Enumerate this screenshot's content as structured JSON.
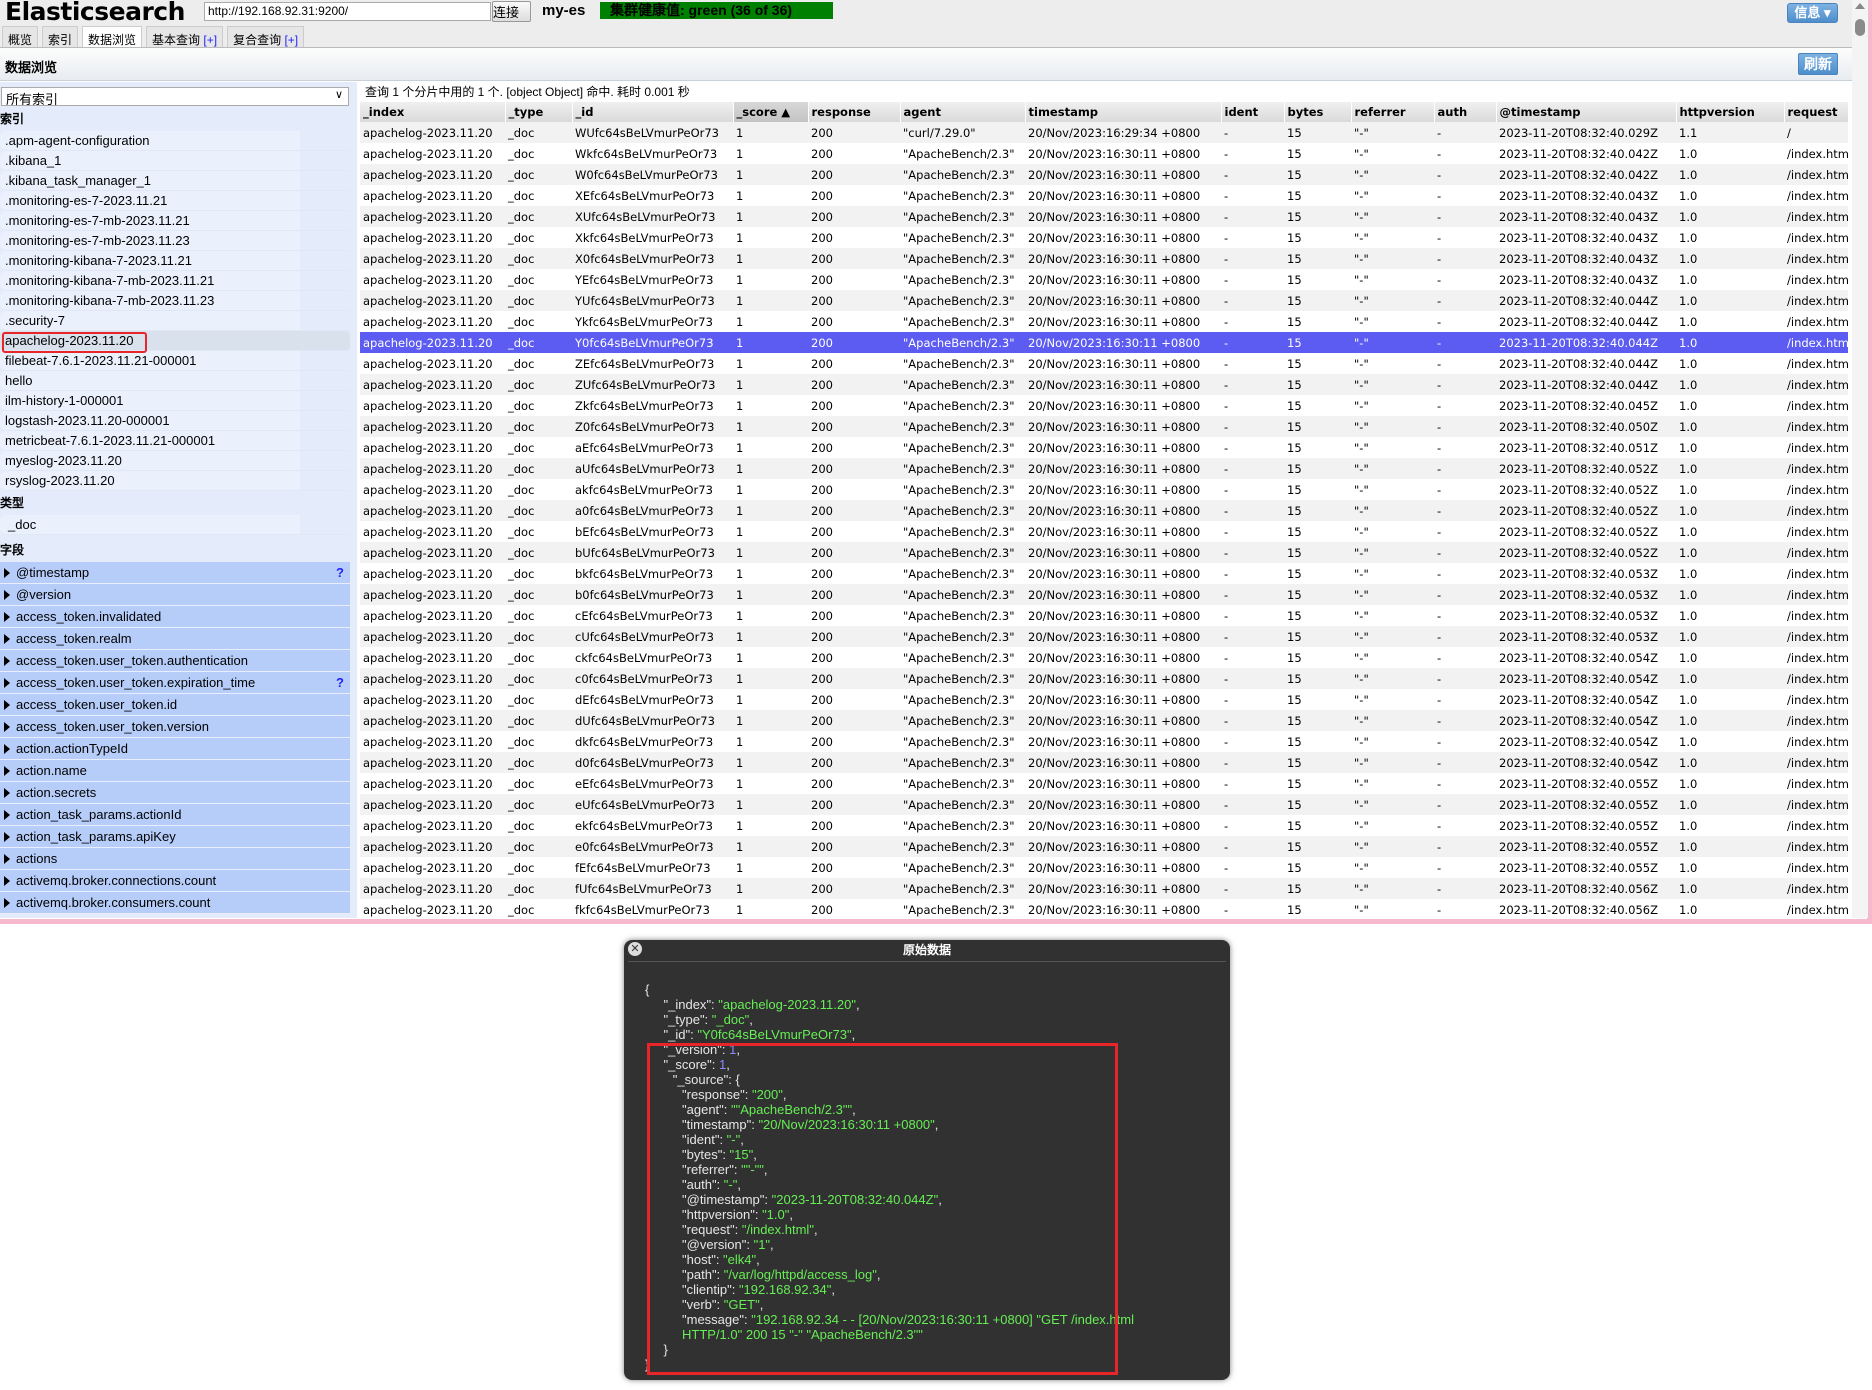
{
  "header": {
    "app_title": "Elasticsearch",
    "url": "http://192.168.92.31:9200/",
    "connect_label": "连接",
    "cluster_name": "my-es",
    "health": "集群健康值: green (36 of 36)",
    "health_color": "#008000",
    "info_label": "信息 ▾"
  },
  "tabs": [
    {
      "label": "概览"
    },
    {
      "label": "索引"
    },
    {
      "label": "数据浏览",
      "active": true
    },
    {
      "label": "基本查询",
      "plus": "[+]"
    },
    {
      "label": "复合查询",
      "plus": "[+]"
    }
  ],
  "subbar": {
    "title": "数据浏览",
    "refresh_label": "刷新"
  },
  "sidebar": {
    "select_value": "所有索引",
    "indices_heading": "索引",
    "indices": [
      ".apm-agent-configuration",
      ".kibana_1",
      ".kibana_task_manager_1",
      ".monitoring-es-7-2023.11.21",
      ".monitoring-es-7-mb-2023.11.21",
      ".monitoring-es-7-mb-2023.11.23",
      ".monitoring-kibana-7-2023.11.21",
      ".monitoring-kibana-7-mb-2023.11.21",
      ".monitoring-kibana-7-mb-2023.11.23",
      ".security-7",
      "apachelog-2023.11.20",
      "filebeat-7.6.1-2023.11.21-000001",
      "hello",
      "ilm-history-1-000001",
      "logstash-2023.11.20-000001",
      "metricbeat-7.6.1-2023.11.21-000001",
      "myeslog-2023.11.20",
      "rsyslog-2023.11.20"
    ],
    "selected_index": "apachelog-2023.11.20",
    "types_heading": "类型",
    "types": [
      "_doc"
    ],
    "fields_heading": "字段",
    "fields": [
      {
        "name": "@timestamp",
        "help": "?"
      },
      {
        "name": "@version"
      },
      {
        "name": "access_token.invalidated"
      },
      {
        "name": "access_token.realm"
      },
      {
        "name": "access_token.user_token.authentication"
      },
      {
        "name": "access_token.user_token.expiration_time",
        "help": "?"
      },
      {
        "name": "access_token.user_token.id"
      },
      {
        "name": "access_token.user_token.version"
      },
      {
        "name": "action.actionTypeId"
      },
      {
        "name": "action.name"
      },
      {
        "name": "action.secrets"
      },
      {
        "name": "action_task_params.actionId"
      },
      {
        "name": "action_task_params.apiKey"
      },
      {
        "name": "actions"
      },
      {
        "name": "activemq.broker.connections.count"
      },
      {
        "name": "activemq.broker.consumers.count"
      }
    ]
  },
  "results": {
    "summary": "查询 1 个分片中用的 1 个. [object Object] 命中. 耗时 0.001 秒",
    "columns": [
      "_index",
      "_type",
      "_id",
      "_score ▲",
      "response",
      "agent",
      "timestamp",
      "ident",
      "bytes",
      "referrer",
      "auth",
      "@timestamp",
      "httpversion",
      "request"
    ],
    "sorted_column": "_score",
    "selected_row_id": "Y0fc64sBeLVmurPeOr73",
    "selected_color": "#5c5cf2",
    "rows": [
      [
        "apachelog-2023.11.20",
        "_doc",
        "WUfc64sBeLVmurPeOr73",
        "1",
        "200",
        "\"curl/7.29.0\"",
        "20/Nov/2023:16:29:34 +0800",
        "-",
        "15",
        "\"-\"",
        "-",
        "2023-11-20T08:32:40.029Z",
        "1.1",
        "/"
      ],
      [
        "apachelog-2023.11.20",
        "_doc",
        "Wkfc64sBeLVmurPeOr73",
        "1",
        "200",
        "\"ApacheBench/2.3\"",
        "20/Nov/2023:16:30:11 +0800",
        "-",
        "15",
        "\"-\"",
        "-",
        "2023-11-20T08:32:40.042Z",
        "1.0",
        "/index.html"
      ],
      [
        "apachelog-2023.11.20",
        "_doc",
        "W0fc64sBeLVmurPeOr73",
        "1",
        "200",
        "\"ApacheBench/2.3\"",
        "20/Nov/2023:16:30:11 +0800",
        "-",
        "15",
        "\"-\"",
        "-",
        "2023-11-20T08:32:40.042Z",
        "1.0",
        "/index.html"
      ],
      [
        "apachelog-2023.11.20",
        "_doc",
        "XEfc64sBeLVmurPeOr73",
        "1",
        "200",
        "\"ApacheBench/2.3\"",
        "20/Nov/2023:16:30:11 +0800",
        "-",
        "15",
        "\"-\"",
        "-",
        "2023-11-20T08:32:40.043Z",
        "1.0",
        "/index.html"
      ],
      [
        "apachelog-2023.11.20",
        "_doc",
        "XUfc64sBeLVmurPeOr73",
        "1",
        "200",
        "\"ApacheBench/2.3\"",
        "20/Nov/2023:16:30:11 +0800",
        "-",
        "15",
        "\"-\"",
        "-",
        "2023-11-20T08:32:40.043Z",
        "1.0",
        "/index.html"
      ],
      [
        "apachelog-2023.11.20",
        "_doc",
        "Xkfc64sBeLVmurPeOr73",
        "1",
        "200",
        "\"ApacheBench/2.3\"",
        "20/Nov/2023:16:30:11 +0800",
        "-",
        "15",
        "\"-\"",
        "-",
        "2023-11-20T08:32:40.043Z",
        "1.0",
        "/index.html"
      ],
      [
        "apachelog-2023.11.20",
        "_doc",
        "X0fc64sBeLVmurPeOr73",
        "1",
        "200",
        "\"ApacheBench/2.3\"",
        "20/Nov/2023:16:30:11 +0800",
        "-",
        "15",
        "\"-\"",
        "-",
        "2023-11-20T08:32:40.043Z",
        "1.0",
        "/index.html"
      ],
      [
        "apachelog-2023.11.20",
        "_doc",
        "YEfc64sBeLVmurPeOr73",
        "1",
        "200",
        "\"ApacheBench/2.3\"",
        "20/Nov/2023:16:30:11 +0800",
        "-",
        "15",
        "\"-\"",
        "-",
        "2023-11-20T08:32:40.043Z",
        "1.0",
        "/index.html"
      ],
      [
        "apachelog-2023.11.20",
        "_doc",
        "YUfc64sBeLVmurPeOr73",
        "1",
        "200",
        "\"ApacheBench/2.3\"",
        "20/Nov/2023:16:30:11 +0800",
        "-",
        "15",
        "\"-\"",
        "-",
        "2023-11-20T08:32:40.044Z",
        "1.0",
        "/index.html"
      ],
      [
        "apachelog-2023.11.20",
        "_doc",
        "Ykfc64sBeLVmurPeOr73",
        "1",
        "200",
        "\"ApacheBench/2.3\"",
        "20/Nov/2023:16:30:11 +0800",
        "-",
        "15",
        "\"-\"",
        "-",
        "2023-11-20T08:32:40.044Z",
        "1.0",
        "/index.html"
      ],
      [
        "apachelog-2023.11.20",
        "_doc",
        "Y0fc64sBeLVmurPeOr73",
        "1",
        "200",
        "\"ApacheBench/2.3\"",
        "20/Nov/2023:16:30:11 +0800",
        "-",
        "15",
        "\"-\"",
        "-",
        "2023-11-20T08:32:40.044Z",
        "1.0",
        "/index.html"
      ],
      [
        "apachelog-2023.11.20",
        "_doc",
        "ZEfc64sBeLVmurPeOr73",
        "1",
        "200",
        "\"ApacheBench/2.3\"",
        "20/Nov/2023:16:30:11 +0800",
        "-",
        "15",
        "\"-\"",
        "-",
        "2023-11-20T08:32:40.044Z",
        "1.0",
        "/index.html"
      ],
      [
        "apachelog-2023.11.20",
        "_doc",
        "ZUfc64sBeLVmurPeOr73",
        "1",
        "200",
        "\"ApacheBench/2.3\"",
        "20/Nov/2023:16:30:11 +0800",
        "-",
        "15",
        "\"-\"",
        "-",
        "2023-11-20T08:32:40.044Z",
        "1.0",
        "/index.html"
      ],
      [
        "apachelog-2023.11.20",
        "_doc",
        "Zkfc64sBeLVmurPeOr73",
        "1",
        "200",
        "\"ApacheBench/2.3\"",
        "20/Nov/2023:16:30:11 +0800",
        "-",
        "15",
        "\"-\"",
        "-",
        "2023-11-20T08:32:40.045Z",
        "1.0",
        "/index.html"
      ],
      [
        "apachelog-2023.11.20",
        "_doc",
        "Z0fc64sBeLVmurPeOr73",
        "1",
        "200",
        "\"ApacheBench/2.3\"",
        "20/Nov/2023:16:30:11 +0800",
        "-",
        "15",
        "\"-\"",
        "-",
        "2023-11-20T08:32:40.050Z",
        "1.0",
        "/index.html"
      ],
      [
        "apachelog-2023.11.20",
        "_doc",
        "aEfc64sBeLVmurPeOr73",
        "1",
        "200",
        "\"ApacheBench/2.3\"",
        "20/Nov/2023:16:30:11 +0800",
        "-",
        "15",
        "\"-\"",
        "-",
        "2023-11-20T08:32:40.051Z",
        "1.0",
        "/index.html"
      ],
      [
        "apachelog-2023.11.20",
        "_doc",
        "aUfc64sBeLVmurPeOr73",
        "1",
        "200",
        "\"ApacheBench/2.3\"",
        "20/Nov/2023:16:30:11 +0800",
        "-",
        "15",
        "\"-\"",
        "-",
        "2023-11-20T08:32:40.052Z",
        "1.0",
        "/index.html"
      ],
      [
        "apachelog-2023.11.20",
        "_doc",
        "akfc64sBeLVmurPeOr73",
        "1",
        "200",
        "\"ApacheBench/2.3\"",
        "20/Nov/2023:16:30:11 +0800",
        "-",
        "15",
        "\"-\"",
        "-",
        "2023-11-20T08:32:40.052Z",
        "1.0",
        "/index.html"
      ],
      [
        "apachelog-2023.11.20",
        "_doc",
        "a0fc64sBeLVmurPeOr73",
        "1",
        "200",
        "\"ApacheBench/2.3\"",
        "20/Nov/2023:16:30:11 +0800",
        "-",
        "15",
        "\"-\"",
        "-",
        "2023-11-20T08:32:40.052Z",
        "1.0",
        "/index.html"
      ],
      [
        "apachelog-2023.11.20",
        "_doc",
        "bEfc64sBeLVmurPeOr73",
        "1",
        "200",
        "\"ApacheBench/2.3\"",
        "20/Nov/2023:16:30:11 +0800",
        "-",
        "15",
        "\"-\"",
        "-",
        "2023-11-20T08:32:40.052Z",
        "1.0",
        "/index.html"
      ],
      [
        "apachelog-2023.11.20",
        "_doc",
        "bUfc64sBeLVmurPeOr73",
        "1",
        "200",
        "\"ApacheBench/2.3\"",
        "20/Nov/2023:16:30:11 +0800",
        "-",
        "15",
        "\"-\"",
        "-",
        "2023-11-20T08:32:40.052Z",
        "1.0",
        "/index.html"
      ],
      [
        "apachelog-2023.11.20",
        "_doc",
        "bkfc64sBeLVmurPeOr73",
        "1",
        "200",
        "\"ApacheBench/2.3\"",
        "20/Nov/2023:16:30:11 +0800",
        "-",
        "15",
        "\"-\"",
        "-",
        "2023-11-20T08:32:40.053Z",
        "1.0",
        "/index.html"
      ],
      [
        "apachelog-2023.11.20",
        "_doc",
        "b0fc64sBeLVmurPeOr73",
        "1",
        "200",
        "\"ApacheBench/2.3\"",
        "20/Nov/2023:16:30:11 +0800",
        "-",
        "15",
        "\"-\"",
        "-",
        "2023-11-20T08:32:40.053Z",
        "1.0",
        "/index.html"
      ],
      [
        "apachelog-2023.11.20",
        "_doc",
        "cEfc64sBeLVmurPeOr73",
        "1",
        "200",
        "\"ApacheBench/2.3\"",
        "20/Nov/2023:16:30:11 +0800",
        "-",
        "15",
        "\"-\"",
        "-",
        "2023-11-20T08:32:40.053Z",
        "1.0",
        "/index.html"
      ],
      [
        "apachelog-2023.11.20",
        "_doc",
        "cUfc64sBeLVmurPeOr73",
        "1",
        "200",
        "\"ApacheBench/2.3\"",
        "20/Nov/2023:16:30:11 +0800",
        "-",
        "15",
        "\"-\"",
        "-",
        "2023-11-20T08:32:40.053Z",
        "1.0",
        "/index.html"
      ],
      [
        "apachelog-2023.11.20",
        "_doc",
        "ckfc64sBeLVmurPeOr73",
        "1",
        "200",
        "\"ApacheBench/2.3\"",
        "20/Nov/2023:16:30:11 +0800",
        "-",
        "15",
        "\"-\"",
        "-",
        "2023-11-20T08:32:40.054Z",
        "1.0",
        "/index.html"
      ],
      [
        "apachelog-2023.11.20",
        "_doc",
        "c0fc64sBeLVmurPeOr73",
        "1",
        "200",
        "\"ApacheBench/2.3\"",
        "20/Nov/2023:16:30:11 +0800",
        "-",
        "15",
        "\"-\"",
        "-",
        "2023-11-20T08:32:40.054Z",
        "1.0",
        "/index.html"
      ],
      [
        "apachelog-2023.11.20",
        "_doc",
        "dEfc64sBeLVmurPeOr73",
        "1",
        "200",
        "\"ApacheBench/2.3\"",
        "20/Nov/2023:16:30:11 +0800",
        "-",
        "15",
        "\"-\"",
        "-",
        "2023-11-20T08:32:40.054Z",
        "1.0",
        "/index.html"
      ],
      [
        "apachelog-2023.11.20",
        "_doc",
        "dUfc64sBeLVmurPeOr73",
        "1",
        "200",
        "\"ApacheBench/2.3\"",
        "20/Nov/2023:16:30:11 +0800",
        "-",
        "15",
        "\"-\"",
        "-",
        "2023-11-20T08:32:40.054Z",
        "1.0",
        "/index.html"
      ],
      [
        "apachelog-2023.11.20",
        "_doc",
        "dkfc64sBeLVmurPeOr73",
        "1",
        "200",
        "\"ApacheBench/2.3\"",
        "20/Nov/2023:16:30:11 +0800",
        "-",
        "15",
        "\"-\"",
        "-",
        "2023-11-20T08:32:40.054Z",
        "1.0",
        "/index.html"
      ],
      [
        "apachelog-2023.11.20",
        "_doc",
        "d0fc64sBeLVmurPeOr73",
        "1",
        "200",
        "\"ApacheBench/2.3\"",
        "20/Nov/2023:16:30:11 +0800",
        "-",
        "15",
        "\"-\"",
        "-",
        "2023-11-20T08:32:40.054Z",
        "1.0",
        "/index.html"
      ],
      [
        "apachelog-2023.11.20",
        "_doc",
        "eEfc64sBeLVmurPeOr73",
        "1",
        "200",
        "\"ApacheBench/2.3\"",
        "20/Nov/2023:16:30:11 +0800",
        "-",
        "15",
        "\"-\"",
        "-",
        "2023-11-20T08:32:40.055Z",
        "1.0",
        "/index.html"
      ],
      [
        "apachelog-2023.11.20",
        "_doc",
        "eUfc64sBeLVmurPeOr73",
        "1",
        "200",
        "\"ApacheBench/2.3\"",
        "20/Nov/2023:16:30:11 +0800",
        "-",
        "15",
        "\"-\"",
        "-",
        "2023-11-20T08:32:40.055Z",
        "1.0",
        "/index.html"
      ],
      [
        "apachelog-2023.11.20",
        "_doc",
        "ekfc64sBeLVmurPeOr73",
        "1",
        "200",
        "\"ApacheBench/2.3\"",
        "20/Nov/2023:16:30:11 +0800",
        "-",
        "15",
        "\"-\"",
        "-",
        "2023-11-20T08:32:40.055Z",
        "1.0",
        "/index.html"
      ],
      [
        "apachelog-2023.11.20",
        "_doc",
        "e0fc64sBeLVmurPeOr73",
        "1",
        "200",
        "\"ApacheBench/2.3\"",
        "20/Nov/2023:16:30:11 +0800",
        "-",
        "15",
        "\"-\"",
        "-",
        "2023-11-20T08:32:40.055Z",
        "1.0",
        "/index.html"
      ],
      [
        "apachelog-2023.11.20",
        "_doc",
        "fEfc64sBeLVmurPeOr73",
        "1",
        "200",
        "\"ApacheBench/2.3\"",
        "20/Nov/2023:16:30:11 +0800",
        "-",
        "15",
        "\"-\"",
        "-",
        "2023-11-20T08:32:40.055Z",
        "1.0",
        "/index.html"
      ],
      [
        "apachelog-2023.11.20",
        "_doc",
        "fUfc64sBeLVmurPeOr73",
        "1",
        "200",
        "\"ApacheBench/2.3\"",
        "20/Nov/2023:16:30:11 +0800",
        "-",
        "15",
        "\"-\"",
        "-",
        "2023-11-20T08:32:40.056Z",
        "1.0",
        "/index.html"
      ],
      [
        "apachelog-2023.11.20",
        "_doc",
        "fkfc64sBeLVmurPeOr73",
        "1",
        "200",
        "\"ApacheBench/2.3\"",
        "20/Nov/2023:16:30:11 +0800",
        "-",
        "15",
        "\"-\"",
        "-",
        "2023-11-20T08:32:40.056Z",
        "1.0",
        "/index.html"
      ]
    ]
  },
  "modal": {
    "title": "原始数据",
    "close_icon": "close-circle-icon",
    "lines": [
      {
        "d": 0,
        "p": "{"
      },
      {
        "d": 1,
        "k": "_index",
        "v": "\"apachelog-2023.11.20\"",
        "t": "s",
        "c": ","
      },
      {
        "d": 1,
        "k": "_type",
        "v": "\"_doc\"",
        "t": "s",
        "c": ","
      },
      {
        "d": 1,
        "k": "_id",
        "v": "\"Y0fc64sBeLVmurPeOr73\"",
        "t": "s",
        "c": ","
      },
      {
        "d": 1,
        "k": "_version",
        "v": "1",
        "t": "n",
        "c": ","
      },
      {
        "d": 1,
        "k": "_score",
        "v": "1",
        "t": "n",
        "c": ","
      },
      {
        "d": 1.5,
        "k": "_source",
        "p2": "{"
      },
      {
        "d": 2,
        "k": "response",
        "v": "\"200\"",
        "t": "s",
        "c": ","
      },
      {
        "d": 2,
        "k": "agent",
        "v": "\"\"ApacheBench/2.3\"\"",
        "t": "s",
        "c": ","
      },
      {
        "d": 2,
        "k": "timestamp",
        "v": "\"20/Nov/2023:16:30:11 +0800\"",
        "t": "s",
        "c": ","
      },
      {
        "d": 2,
        "k": "ident",
        "v": "\"-\"",
        "t": "s",
        "c": ","
      },
      {
        "d": 2,
        "k": "bytes",
        "v": "\"15\"",
        "t": "s",
        "c": ","
      },
      {
        "d": 2,
        "k": "referrer",
        "v": "\"\"-\"\"",
        "t": "s",
        "c": ","
      },
      {
        "d": 2,
        "k": "auth",
        "v": "\"-\"",
        "t": "s",
        "c": ","
      },
      {
        "d": 2,
        "k": "@timestamp",
        "v": "\"2023-11-20T08:32:40.044Z\"",
        "t": "s",
        "c": ","
      },
      {
        "d": 2,
        "k": "httpversion",
        "v": "\"1.0\"",
        "t": "s",
        "c": ","
      },
      {
        "d": 2,
        "k": "request",
        "v": "\"/index.html\"",
        "t": "s",
        "c": ","
      },
      {
        "d": 2,
        "k": "@version",
        "v": "\"1\"",
        "t": "s",
        "c": ","
      },
      {
        "d": 2,
        "k": "host",
        "v": "\"elk4\"",
        "t": "s",
        "c": ","
      },
      {
        "d": 2,
        "k": "path",
        "v": "\"/var/log/httpd/access_log\"",
        "t": "s",
        "c": ","
      },
      {
        "d": 2,
        "k": "clientip",
        "v": "\"192.168.92.34\"",
        "t": "s",
        "c": ","
      },
      {
        "d": 2,
        "k": "verb",
        "v": "\"GET\"",
        "t": "s",
        "c": ","
      },
      {
        "d": 2,
        "k": "message",
        "v": "\"192.168.92.34 - - [20/Nov/2023:16:30:11 +0800] \"GET /index.html",
        "t": "s"
      },
      {
        "d": 2,
        "v": "HTTP/1.0\" 200 15 \"-\" \"ApacheBench/2.3\"\"",
        "t": "s"
      },
      {
        "d": 1,
        "p": "}"
      },
      {
        "d": 0,
        "p": "}"
      }
    ]
  }
}
